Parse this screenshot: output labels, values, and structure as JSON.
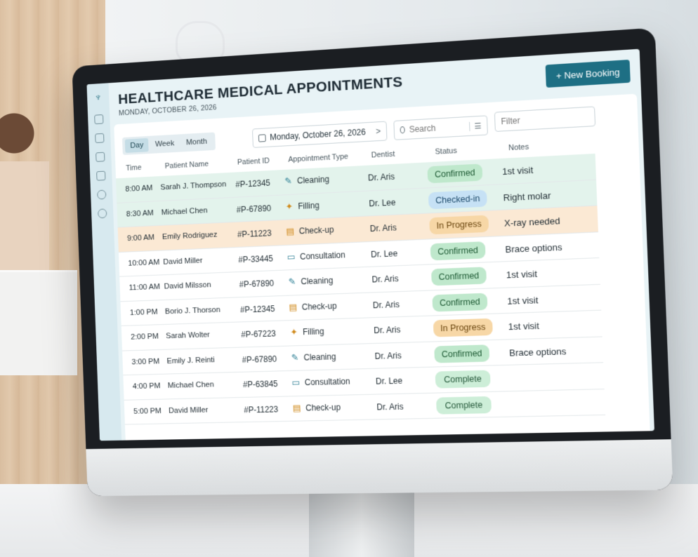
{
  "app": {
    "title": "HEALTHCARE MEDICAL APPOINTMENTS",
    "subtitle": "MONDAY, OCTOBER 26, 2026",
    "new_booking_label": "+ New Booking"
  },
  "views": [
    {
      "label": "Day",
      "active": true
    },
    {
      "label": "Week",
      "active": false
    },
    {
      "label": "Month",
      "active": false
    }
  ],
  "date_picker": {
    "value": "Monday, October 26, 2026",
    "next": ">"
  },
  "search": {
    "placeholder": "Search"
  },
  "filter": {
    "placeholder": "Filter"
  },
  "table": {
    "headers": [
      "Time",
      "Patient Name",
      "Patient ID",
      "Appointment Type",
      "Dentist",
      "Status",
      "Notes"
    ],
    "rows": [
      {
        "time": "8:00 AM",
        "name": "Sarah J. Thompson",
        "pid": "#P-12345",
        "type": "Cleaning",
        "type_icon": "toothbrush-icon",
        "dentist": "Dr. Aris",
        "status": "Confirmed",
        "notes": "1st visit",
        "highlight": "green"
      },
      {
        "time": "8:30 AM",
        "name": "Michael Chen",
        "pid": "#P-67890",
        "type": "Filling",
        "type_icon": "filling-icon",
        "dentist": "Dr. Lee",
        "status": "Checked-in",
        "notes": "Right molar",
        "highlight": "green"
      },
      {
        "time": "9:00 AM",
        "name": "Emily Rodriguez",
        "pid": "#P-11223",
        "type": "Check-up",
        "type_icon": "clipboard-icon",
        "dentist": "Dr. Aris",
        "status": "In Progress",
        "notes": "X-ray needed",
        "highlight": "amber"
      },
      {
        "time": "10:00 AM",
        "name": "David Miller",
        "pid": "#P-33445",
        "type": "Consultation",
        "type_icon": "chat-icon",
        "dentist": "Dr. Lee",
        "status": "Confirmed",
        "notes": "Brace options",
        "highlight": "none"
      },
      {
        "time": "11:00 AM",
        "name": "David Milsson",
        "pid": "#P-67890",
        "type": "Cleaning",
        "type_icon": "toothbrush-icon",
        "dentist": "Dr. Aris",
        "status": "Confirmed",
        "notes": "1st visit",
        "highlight": "none"
      },
      {
        "time": "1:00 PM",
        "name": "Borio J. Thorson",
        "pid": "#P-12345",
        "type": "Check-up",
        "type_icon": "clipboard-icon",
        "dentist": "Dr. Aris",
        "status": "Confirmed",
        "notes": "1st visit",
        "highlight": "none"
      },
      {
        "time": "2:00 PM",
        "name": "Sarah Wolter",
        "pid": "#P-67223",
        "type": "Filling",
        "type_icon": "filling-icon",
        "dentist": "Dr. Aris",
        "status": "In Progress",
        "notes": "1st visit",
        "highlight": "none"
      },
      {
        "time": "3:00 PM",
        "name": "Emily J. Reinti",
        "pid": "#P-67890",
        "type": "Cleaning",
        "type_icon": "toothbrush-icon",
        "dentist": "Dr. Aris",
        "status": "Confirmed",
        "notes": "Brace options",
        "highlight": "none"
      },
      {
        "time": "4:00 PM",
        "name": "Michael Chen",
        "pid": "#P-63845",
        "type": "Consultation",
        "type_icon": "chat-icon",
        "dentist": "Dr. Lee",
        "status": "Complete",
        "notes": "",
        "highlight": "none"
      },
      {
        "time": "5:00 PM",
        "name": "David Miller",
        "pid": "#P-11223",
        "type": "Check-up",
        "type_icon": "clipboard-icon",
        "dentist": "Dr. Aris",
        "status": "Complete",
        "notes": "",
        "highlight": "none"
      }
    ]
  },
  "status_colors": {
    "Confirmed": {
      "bg": "#bfe8cc",
      "fg": "#1e5a34"
    },
    "Checked-in": {
      "bg": "#c6e1f5",
      "fg": "#1d4a6b"
    },
    "In Progress": {
      "bg": "#f7d7a6",
      "fg": "#6b4710"
    },
    "Complete": {
      "bg": "#cdeed8",
      "fg": "#25583a"
    }
  },
  "type_icon_glyphs": {
    "toothbrush-icon": {
      "glyph": "✎",
      "color": "#2d7f95"
    },
    "filling-icon": {
      "glyph": "✦",
      "color": "#d08a1c"
    },
    "clipboard-icon": {
      "glyph": "▤",
      "color": "#d08a1c"
    },
    "chat-icon": {
      "glyph": "▭",
      "color": "#2d7f95"
    }
  },
  "colors": {
    "accent": "#1e6f84",
    "row_green": "#e3f3ec",
    "row_amber": "#fbe9d4"
  }
}
